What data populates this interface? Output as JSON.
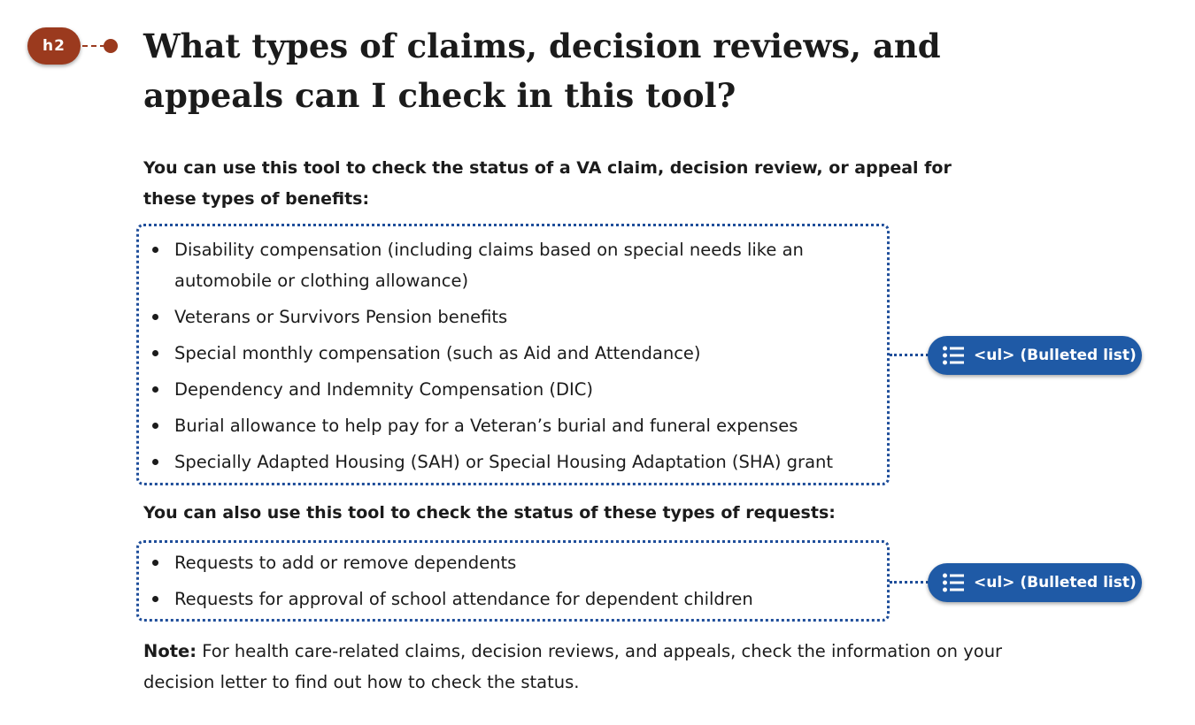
{
  "h2_annotation": {
    "label": "h2",
    "color": "#9b3a1e"
  },
  "heading": "What types of claims, decision reviews, and appeals can I check in this tool?",
  "intro_benefits": "You can use this tool to check the status of a VA claim, decision review, or appeal for these types of benefits:",
  "benefits": [
    "Disability compensation (including claims based on special needs like an automobile or clothing allowance)",
    "Veterans or Survivors Pension benefits",
    "Special monthly compensation (such as Aid and Attendance)",
    "Dependency and Indemnity Compensation (DIC)",
    "Burial allowance to help pay for a Veteran’s burial and funeral expenses",
    "Specially Adapted Housing (SAH) or Special Housing Adaptation (SHA) grant"
  ],
  "intro_requests": "You can also use this tool to check the status of these types of requests:",
  "requests": [
    "Requests to add or remove dependents",
    "Requests for approval of school attendance for dependent children"
  ],
  "list_annotation": {
    "label": "<ul> (Bulleted list)",
    "icon": "list-icon",
    "color": "#1f5aa6"
  },
  "note": {
    "label": "Note:",
    "text": " For health care-related claims, decision reviews, and appeals, check the information on your decision letter to find out how to check the status."
  }
}
